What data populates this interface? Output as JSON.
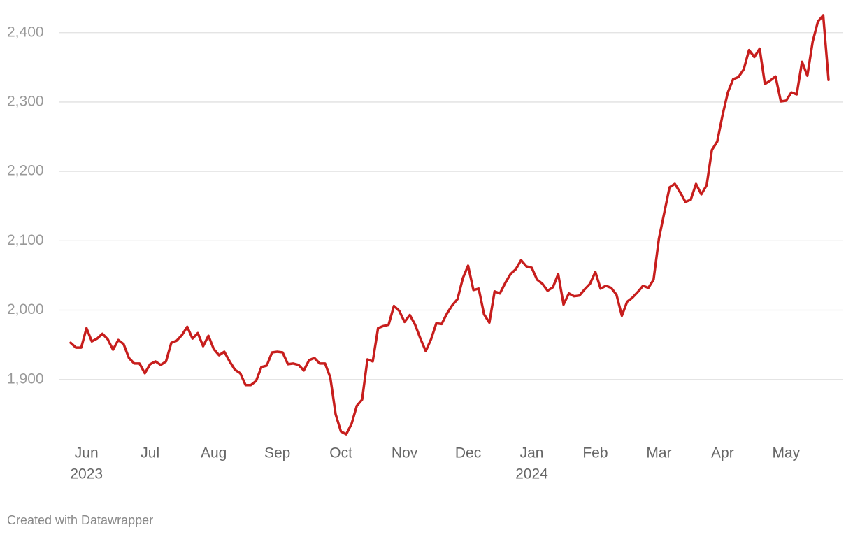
{
  "chart_data": {
    "type": "line",
    "categories": [
      null,
      null,
      null,
      "Jun",
      null,
      null,
      null,
      null,
      null,
      null,
      null,
      null,
      null,
      null,
      null,
      "Jul",
      null,
      null,
      null,
      null,
      null,
      null,
      null,
      null,
      null,
      null,
      null,
      "Aug",
      null,
      null,
      null,
      null,
      null,
      null,
      null,
      null,
      null,
      null,
      null,
      "Sep",
      null,
      null,
      null,
      null,
      null,
      null,
      null,
      null,
      null,
      null,
      null,
      "Oct",
      null,
      null,
      null,
      null,
      null,
      null,
      null,
      null,
      null,
      null,
      null,
      "Nov",
      null,
      null,
      null,
      null,
      null,
      null,
      null,
      null,
      null,
      null,
      null,
      "Dec",
      null,
      null,
      null,
      null,
      null,
      null,
      null,
      null,
      null,
      null,
      null,
      "Jan",
      null,
      null,
      null,
      null,
      null,
      null,
      null,
      null,
      null,
      null,
      null,
      "Feb",
      null,
      null,
      null,
      null,
      null,
      null,
      null,
      null,
      null,
      null,
      null,
      "Mar",
      null,
      null,
      null,
      null,
      null,
      null,
      null,
      null,
      null,
      null,
      null,
      "Apr",
      null,
      null,
      null,
      null,
      null,
      null,
      null,
      null,
      null,
      null,
      null,
      "May",
      null,
      null,
      null,
      null,
      null,
      null,
      null,
      null
    ],
    "category_years": [
      null,
      null,
      null,
      "2023",
      null,
      null,
      null,
      null,
      null,
      null,
      null,
      null,
      null,
      null,
      null,
      null,
      null,
      null,
      null,
      null,
      null,
      null,
      null,
      null,
      null,
      null,
      null,
      null,
      null,
      null,
      null,
      null,
      null,
      null,
      null,
      null,
      null,
      null,
      null,
      null,
      null,
      null,
      null,
      null,
      null,
      null,
      null,
      null,
      null,
      null,
      null,
      null,
      null,
      null,
      null,
      null,
      null,
      null,
      null,
      null,
      null,
      null,
      null,
      null,
      null,
      null,
      null,
      null,
      null,
      null,
      null,
      null,
      null,
      null,
      null,
      null,
      null,
      null,
      null,
      null,
      null,
      null,
      null,
      null,
      null,
      null,
      null,
      "2024",
      null,
      null,
      null,
      null,
      null,
      null,
      null,
      null,
      null,
      null,
      null,
      null,
      null,
      null,
      null,
      null,
      null,
      null,
      null,
      null,
      null,
      null,
      null,
      null,
      null,
      null,
      null,
      null,
      null,
      null,
      null,
      null,
      null,
      null,
      null,
      null,
      null,
      null,
      null,
      null,
      null,
      null,
      null,
      null,
      null,
      null,
      null,
      null,
      null,
      null,
      null,
      null,
      null,
      null,
      null,
      null
    ],
    "values": [
      1953,
      1946,
      1946,
      1974,
      1955,
      1959,
      1966,
      1958,
      1943,
      1957,
      1951,
      1931,
      1923,
      1923,
      1909,
      1922,
      1926,
      1921,
      1926,
      1953,
      1956,
      1964,
      1976,
      1959,
      1967,
      1948,
      1963,
      1944,
      1935,
      1940,
      1926,
      1914,
      1909,
      1892,
      1892,
      1898,
      1918,
      1920,
      1939,
      1940,
      1939,
      1922,
      1923,
      1921,
      1913,
      1928,
      1931,
      1923,
      1923,
      1903,
      1850,
      1825,
      1821,
      1836,
      1862,
      1871,
      1929,
      1926,
      1974,
      1977,
      1979,
      2006,
      1999,
      1983,
      1993,
      1979,
      1959,
      1941,
      1958,
      1981,
      1980,
      1995,
      2007,
      2016,
      2046,
      2064,
      2029,
      2031,
      1994,
      1982,
      2027,
      2024,
      2039,
      2052,
      2059,
      2072,
      2063,
      2061,
      2044,
      2038,
      2028,
      2033,
      2052,
      2008,
      2024,
      2020,
      2021,
      2030,
      2038,
      2055,
      2031,
      2035,
      2032,
      2022,
      1992,
      2012,
      2018,
      2026,
      2035,
      2032,
      2044,
      2103,
      2140,
      2177,
      2182,
      2170,
      2156,
      2159,
      2182,
      2167,
      2180,
      2231,
      2243,
      2281,
      2314,
      2333,
      2336,
      2347,
      2375,
      2365,
      2377,
      2326,
      2331,
      2337,
      2301,
      2302,
      2314,
      2311,
      2358,
      2338,
      2387,
      2416,
      2425,
      2332
    ],
    "color": "#c71e1d",
    "ylim": [
      1810,
      2430
    ],
    "yticks": [
      {
        "value": 1900,
        "label": "1,900"
      },
      {
        "value": 2000,
        "label": "2,000"
      },
      {
        "value": 2100,
        "label": "2,100"
      },
      {
        "value": 2200,
        "label": "2,200"
      },
      {
        "value": 2300,
        "label": "2,300"
      },
      {
        "value": 2400,
        "label": "2,400"
      }
    ],
    "grid": true,
    "credit": "Created with Datawrapper"
  }
}
